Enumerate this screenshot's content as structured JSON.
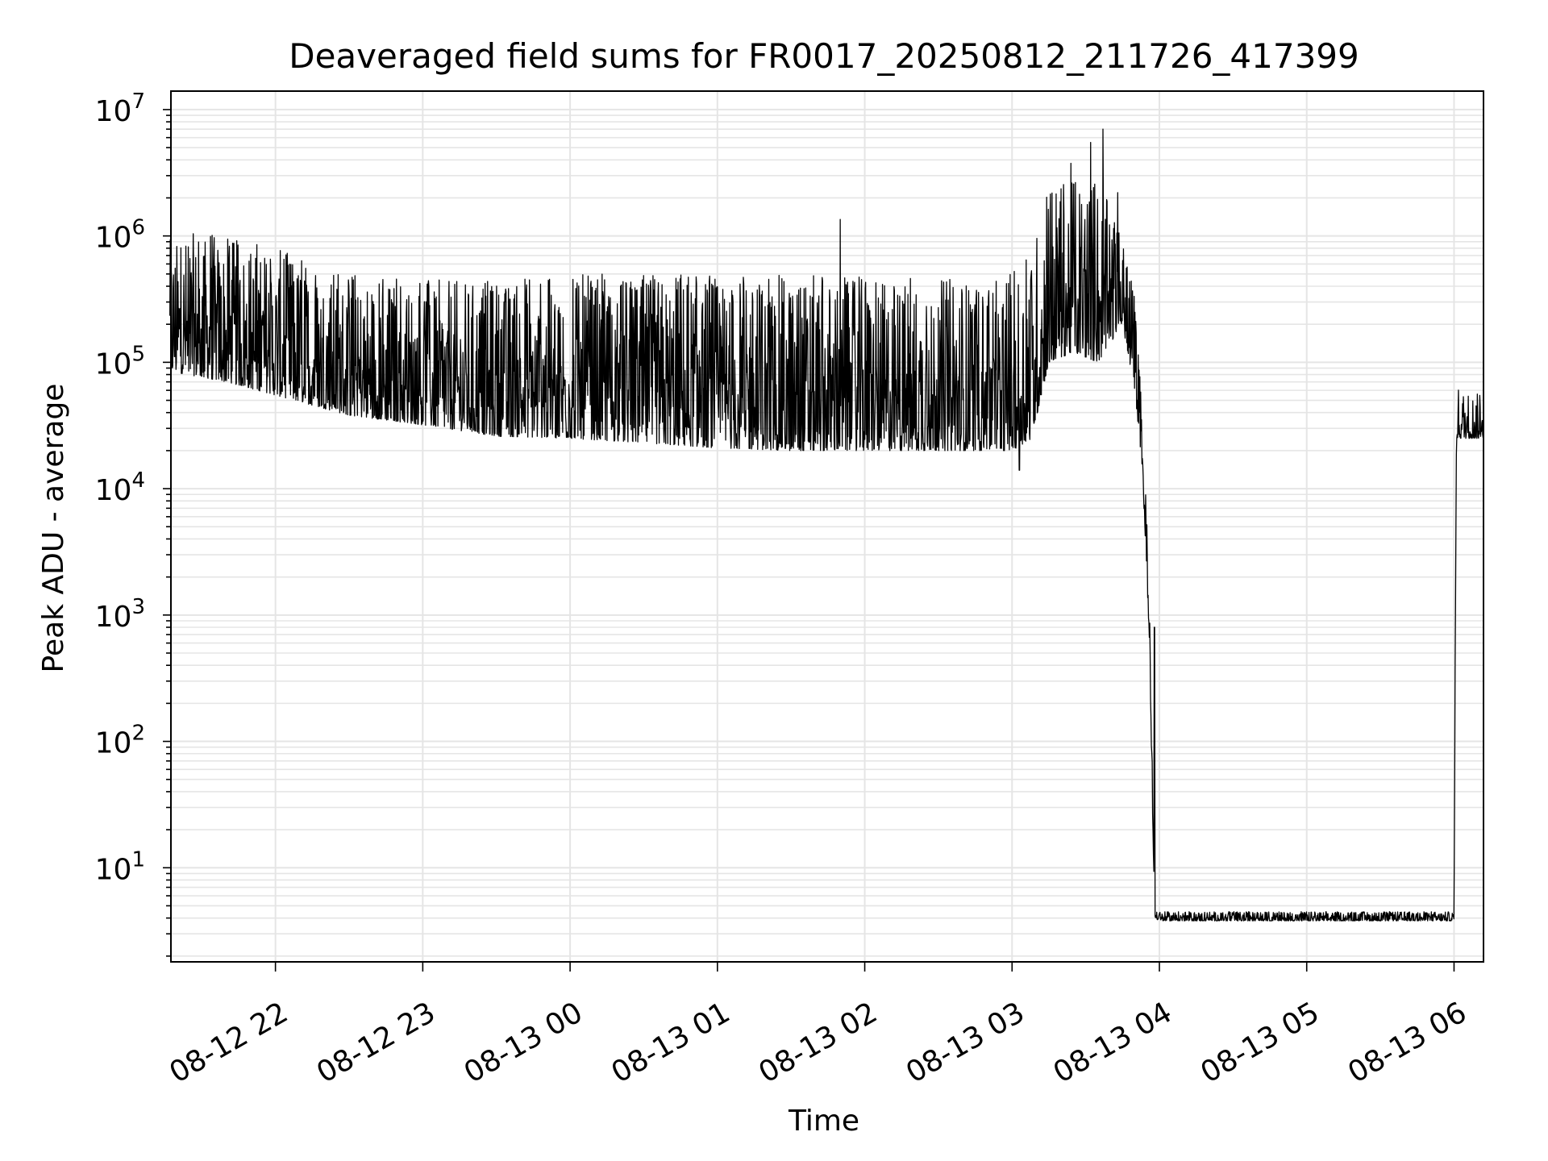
{
  "chart_data": {
    "type": "line",
    "title": "Deaveraged field sums for FR0017_20250812_211726_417399",
    "xlabel": "Time",
    "ylabel": "Peak ADU - average",
    "yscale": "log",
    "ylim": [
      1.8,
      14000000
    ],
    "xlim": [
      "2025-08-12 21:17:26",
      "2025-08-13 06:12:00"
    ],
    "grid": "on (major and minor)",
    "line_color": "#000000",
    "grid_color": "#e5e5e5",
    "x_ticks": [
      {
        "label": "08-12 22",
        "value": "2025-08-12 22:00"
      },
      {
        "label": "08-12 23",
        "value": "2025-08-12 23:00"
      },
      {
        "label": "08-13 00",
        "value": "2025-08-13 00:00"
      },
      {
        "label": "08-13 01",
        "value": "2025-08-13 01:00"
      },
      {
        "label": "08-13 02",
        "value": "2025-08-13 02:00"
      },
      {
        "label": "08-13 03",
        "value": "2025-08-13 03:00"
      },
      {
        "label": "08-13 04",
        "value": "2025-08-13 04:00"
      },
      {
        "label": "08-13 05",
        "value": "2025-08-13 05:00"
      },
      {
        "label": "08-13 06",
        "value": "2025-08-13 06:00"
      }
    ],
    "y_ticks": [
      {
        "base": "10",
        "exp": "1",
        "value": 10
      },
      {
        "base": "10",
        "exp": "2",
        "value": 100
      },
      {
        "base": "10",
        "exp": "3",
        "value": 1000
      },
      {
        "base": "10",
        "exp": "4",
        "value": 10000
      },
      {
        "base": "10",
        "exp": "5",
        "value": 100000
      },
      {
        "base": "10",
        "exp": "6",
        "value": 1000000
      },
      {
        "base": "10",
        "exp": "7",
        "value": 10000000
      }
    ],
    "series": [
      {
        "trend": {
          "x": [
            "2025-08-12 21:17",
            "2025-08-12 21:40",
            "2025-08-12 22:00",
            "2025-08-12 22:30",
            "2025-08-12 23:00",
            "2025-08-12 23:30",
            "2025-08-13 00:00",
            "2025-08-13 00:30",
            "2025-08-13 01:00",
            "2025-08-13 01:30",
            "2025-08-13 02:00",
            "2025-08-13 02:30",
            "2025-08-13 03:00",
            "2025-08-13 03:08",
            "2025-08-13 03:15",
            "2025-08-13 03:25",
            "2025-08-13 03:35",
            "2025-08-13 03:45",
            "2025-08-13 03:50",
            "2025-08-13 03:53",
            "2025-08-13 03:56",
            "2025-08-13 03:58",
            "2025-08-13 04:00",
            "2025-08-13 06:00",
            "2025-08-13 06:01",
            "2025-08-13 06:12"
          ],
          "low": [
            85000,
            70000,
            55000,
            38000,
            32000,
            26000,
            25000,
            23000,
            21000,
            20000,
            20000,
            20000,
            20000,
            25000,
            100000,
            120000,
            100000,
            200000,
            60000,
            15000,
            600,
            4,
            3.8,
            3.8,
            25000,
            25000
          ],
          "high": [
            1100000,
            1000000,
            800000,
            500000,
            450000,
            450000,
            500000,
            500000,
            500000,
            500000,
            480000,
            480000,
            500000,
            900000,
            2500000,
            4000000,
            3000000,
            900000,
            400000,
            40000,
            2000,
            4.5,
            4.5,
            4.5,
            65000,
            55000
          ]
        },
        "spikes": [
          {
            "x": "2025-08-12 23:10",
            "y": 150000
          },
          {
            "x": "2025-08-13 01:50",
            "y": 1350000
          },
          {
            "x": "2025-08-13 03:03",
            "y": 14000
          },
          {
            "x": "2025-08-13 03:32",
            "y": 5500000
          },
          {
            "x": "2025-08-13 03:37",
            "y": 7000000
          },
          {
            "x": "2025-08-13 03:43",
            "y": 2200000
          },
          {
            "x": "2025-08-13 03:58",
            "y": 800
          }
        ]
      }
    ]
  }
}
